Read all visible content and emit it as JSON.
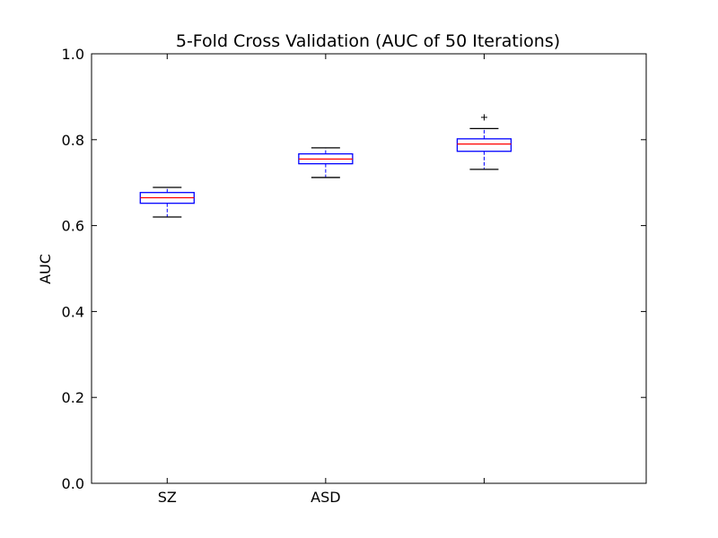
{
  "chart_data": {
    "type": "box",
    "title": "5-Fold Cross Validation (AUC of 50 Iterations)",
    "xlabel": "",
    "ylabel": "AUC",
    "ylim": [
      0.0,
      1.0
    ],
    "yticks": [
      "0.0",
      "0.2",
      "0.4",
      "0.6",
      "0.8",
      "1.0"
    ],
    "categories": [
      "SZ",
      "ASD",
      ""
    ],
    "boxes": [
      {
        "label": "SZ",
        "whisker_low": 0.62,
        "q1": 0.652,
        "median": 0.665,
        "q3": 0.677,
        "whisker_high": 0.689,
        "outliers": []
      },
      {
        "label": "ASD",
        "whisker_low": 0.712,
        "q1": 0.744,
        "median": 0.755,
        "q3": 0.767,
        "whisker_high": 0.781,
        "outliers": []
      },
      {
        "label": "",
        "whisker_low": 0.731,
        "q1": 0.773,
        "median": 0.79,
        "q3": 0.802,
        "whisker_high": 0.826,
        "outliers": [
          0.852
        ]
      }
    ],
    "colors": {
      "box": "#0000ff",
      "median": "#ff0000",
      "whisker": "#000000",
      "frame": "#000000"
    },
    "grid": false
  }
}
